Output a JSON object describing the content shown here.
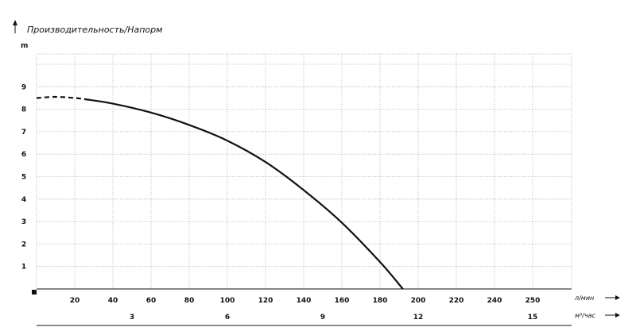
{
  "chart_data": {
    "type": "line",
    "title": "Производительность/Напорм",
    "ylabel": "m",
    "xlabel": "л/мин",
    "x2label": "м³/час",
    "ylim": [
      0,
      10
    ],
    "xlim": [
      0,
      270
    ],
    "grid": true,
    "y_ticks": [
      "1",
      "2",
      "3",
      "4",
      "5",
      "6",
      "7",
      "8",
      "9"
    ],
    "x_ticks": [
      "20",
      "40",
      "60",
      "80",
      "100",
      "120",
      "140",
      "160",
      "180",
      "200",
      "220",
      "240",
      "250"
    ],
    "x2_ticks": [
      "3",
      "6",
      "9",
      "12",
      "15"
    ],
    "series": [
      {
        "style": "dashed",
        "x": [
          0,
          10,
          20,
          25
        ],
        "y": [
          8.5,
          8.55,
          8.5,
          8.45
        ]
      },
      {
        "style": "solid",
        "x": [
          25,
          40,
          60,
          80,
          100,
          120,
          140,
          160,
          180,
          192
        ],
        "y": [
          8.45,
          8.25,
          7.85,
          7.3,
          6.6,
          5.65,
          4.4,
          2.95,
          1.2,
          0
        ]
      }
    ]
  }
}
